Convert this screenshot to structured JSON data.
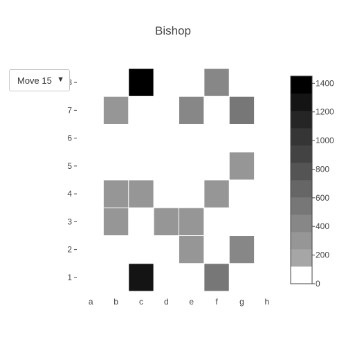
{
  "chart_data": {
    "type": "heatmap",
    "title": "Bishop",
    "x_categories": [
      "a",
      "b",
      "c",
      "d",
      "e",
      "f",
      "g",
      "h"
    ],
    "y_categories": [
      "1",
      "2",
      "3",
      "4",
      "5",
      "6",
      "7",
      "8"
    ],
    "cells": [
      {
        "x": "c",
        "y": "8",
        "value": 1450
      },
      {
        "x": "f",
        "y": "8",
        "value": 470
      },
      {
        "x": "b",
        "y": "7",
        "value": 330
      },
      {
        "x": "e",
        "y": "7",
        "value": 430
      },
      {
        "x": "g",
        "y": "7",
        "value": 500
      },
      {
        "x": "g",
        "y": "5",
        "value": 320
      },
      {
        "x": "b",
        "y": "4",
        "value": 330
      },
      {
        "x": "c",
        "y": "4",
        "value": 340
      },
      {
        "x": "f",
        "y": "4",
        "value": 320
      },
      {
        "x": "b",
        "y": "3",
        "value": 330
      },
      {
        "x": "d",
        "y": "3",
        "value": 330
      },
      {
        "x": "e",
        "y": "3",
        "value": 330
      },
      {
        "x": "e",
        "y": "2",
        "value": 320
      },
      {
        "x": "g",
        "y": "2",
        "value": 430
      },
      {
        "x": "c",
        "y": "1",
        "value": 1270
      },
      {
        "x": "f",
        "y": "1",
        "value": 580
      }
    ],
    "colorscale": {
      "min": 0,
      "max": 1450,
      "tick_values": [
        0,
        200,
        400,
        600,
        800,
        1000,
        1200,
        1400
      ],
      "band_colors": [
        "#ffffff",
        "#a6a6a6",
        "#969696",
        "#878787",
        "#777777",
        "#666666",
        "#545454",
        "#434343",
        "#353535",
        "#252525",
        "#141414",
        "#000000"
      ]
    }
  },
  "controls": {
    "move_selector": {
      "selected": "Move 15",
      "arrow": "▼"
    }
  }
}
